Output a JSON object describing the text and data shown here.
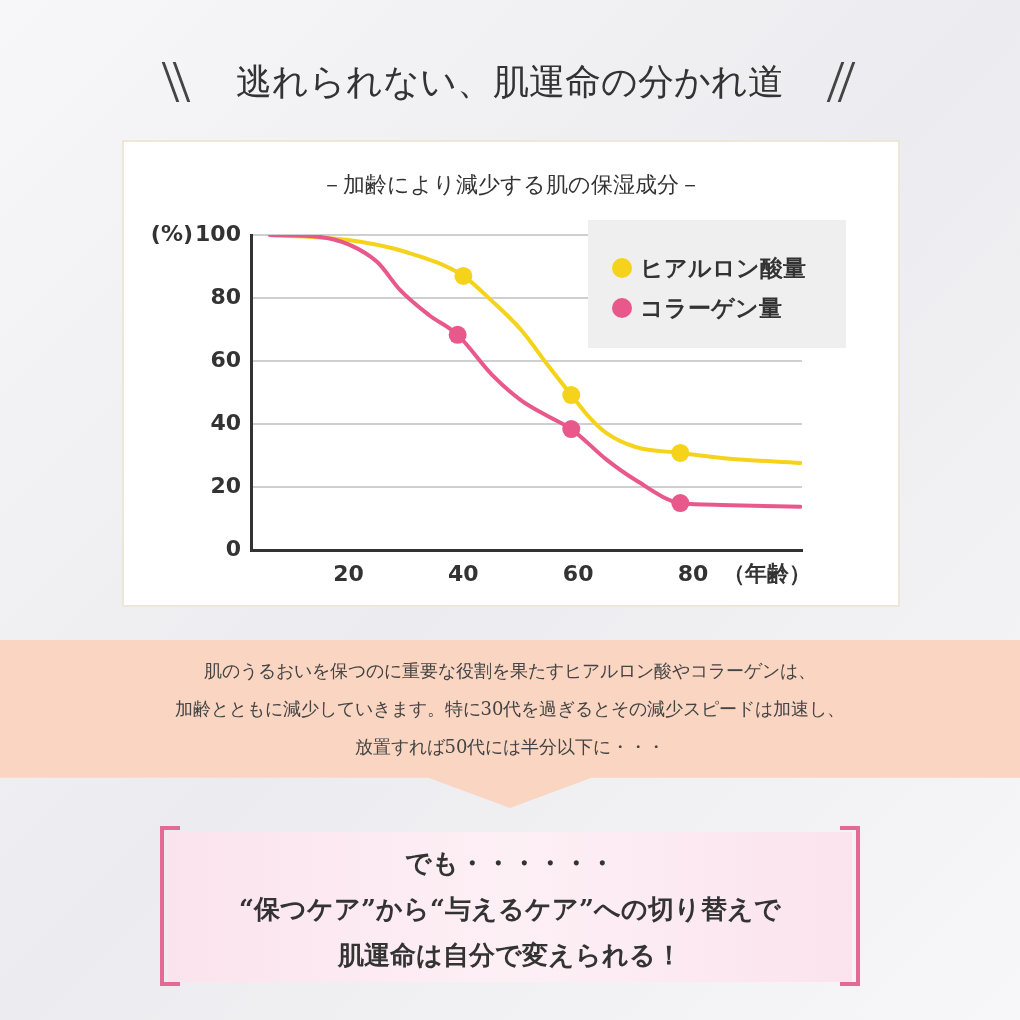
{
  "chart_data": {
    "type": "line",
    "title": "逃れられない、肌運命の分かれ道",
    "subtitle": "－加齢により減少する肌の保湿成分－",
    "ylabel": "(%)",
    "xlabel": "（年齢）",
    "xlim": [
      3,
      99
    ],
    "xticks": [
      20,
      40,
      60,
      80
    ],
    "ylim": [
      0,
      100
    ],
    "yticks": [
      0,
      20,
      40,
      60,
      80,
      100
    ],
    "grid": "y",
    "legend": "top right",
    "line_style": "solid",
    "series": [
      {
        "type": "line",
        "marker": "none",
        "color": "#f5d31a",
        "x": [
          6.3,
          20,
          30,
          40,
          45,
          50,
          55,
          58.8,
          62,
          65,
          70,
          77.8,
          85,
          98.7
        ],
        "values": [
          100,
          98.4,
          94.6,
          87,
          79,
          70,
          58,
          49.2,
          42,
          37,
          32.7,
          30.8,
          29.2,
          27.6
        ]
      },
      {
        "type": "line",
        "marker": "none",
        "color": "#e8588a",
        "x": [
          6.3,
          15,
          20,
          25,
          29,
          34,
          39,
          45,
          50,
          55,
          58.8,
          65,
          70,
          77.8,
          85,
          98.7
        ],
        "values": [
          100,
          99.4,
          97,
          91.4,
          82.5,
          74.6,
          68.3,
          55.6,
          47.6,
          42.2,
          38.4,
          28.6,
          22.2,
          14.9,
          14.3,
          13.7
        ]
      },
      {
        "type": "scatter",
        "marker": "circle",
        "name": "ヒアルロン酸量",
        "color": "#f5d31a",
        "x": [
          40,
          58.8,
          77.8
        ],
        "values": [
          87,
          49.2,
          30.8
        ]
      },
      {
        "type": "scatter",
        "marker": "circle",
        "name": "コラーゲン量",
        "color": "#e8588a",
        "x": [
          39,
          58.8,
          77.8
        ],
        "values": [
          68.3,
          38.4,
          14.9
        ]
      }
    ],
    "annotations": [
      "肌のうるおいを保つのに重要な役割を果たすヒアルロン酸やコラーゲンは、",
      "加齢とともに減少していきます。特に30代を過ぎるとその減少スピードは加速し、",
      "放置すれば50代には半分以下に・・・",
      "でも・・・・・・",
      "“保つケア”から“与えるケア”への切り替えで",
      "肌運命は自分で変えられる！"
    ]
  }
}
